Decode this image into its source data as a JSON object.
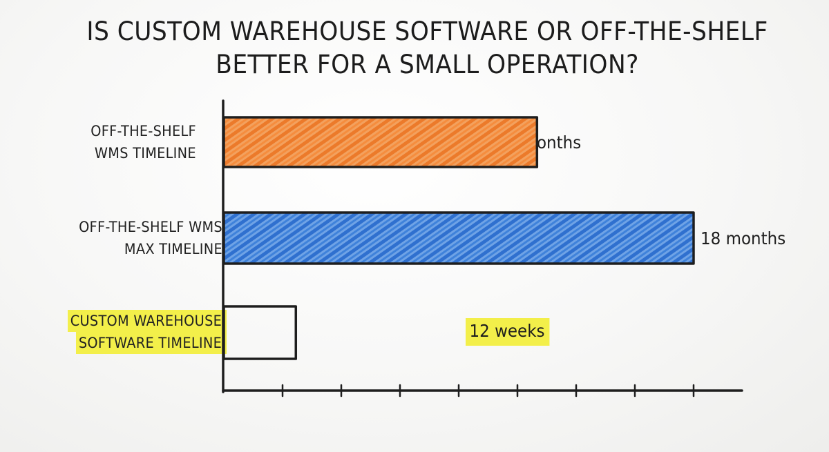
{
  "chart_data": {
    "type": "bar",
    "orientation": "horizontal",
    "title": "IS CUSTOM WAREHOUSE SOFTWARE OR OFF-THE-SHELF BETTER FOR A SMALL OPERATION?",
    "title_lines": [
      "IS CUSTOM WAREHOUSE SOFTWARE OR OFF-THE-SHELF",
      "BETTER FOR A SMALL OPERATION?"
    ],
    "unit": "months",
    "xlim": [
      0,
      18
    ],
    "axis_ticks": [
      0,
      2.25,
      4.5,
      6.75,
      9,
      11.25,
      13.5,
      15.75,
      18
    ],
    "grid": false,
    "bars": [
      {
        "category": "OFF-THE-SHELF WMS TIMELINE",
        "label_lines": [
          "OFF-THE-SHELF",
          "WMS TIMELINE"
        ],
        "value": 12,
        "value_label": "12 months",
        "fill": "#f08a3c",
        "highlight": false
      },
      {
        "category": "OFF-THE-SHELF WMS MAX TIMELINE",
        "label_lines": [
          "OFF-THE-SHELF WMS",
          "MAX TIMELINE"
        ],
        "value": 18,
        "value_label": "18 months",
        "fill": "#3a7bd5",
        "highlight": false
      },
      {
        "category": "CUSTOM WAREHOUSE SOFTWARE TIMELINE",
        "label_lines": [
          "CUSTOM WAREHOUSE",
          "SOFTWARE TIMELINE"
        ],
        "value": 2.76,
        "value_label": "12 weeks",
        "fill": "none",
        "highlight": true
      }
    ],
    "colors": {
      "ink": "#1e1e1e",
      "highlight": "#f3ef4a"
    }
  }
}
